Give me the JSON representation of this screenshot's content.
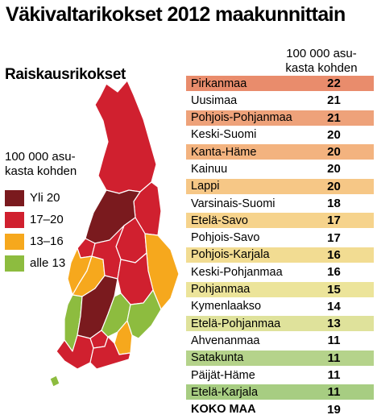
{
  "title": "Väkivaltarikokset 2012 maakunnittain",
  "subtitle": "Raiskausrikokset",
  "unit_text": [
    "100 000 asu-",
    "kasta kohden"
  ],
  "legend": [
    {
      "label": "Yli 20",
      "color": "#7a1a1e"
    },
    {
      "label": "17–20",
      "color": "#d0202f"
    },
    {
      "label": "13–16",
      "color": "#f6a81d"
    },
    {
      "label": "alle 13",
      "color": "#8dbc3f"
    }
  ],
  "table": {
    "rows": [
      {
        "name": "Pirkanmaa",
        "value": "22",
        "color": "#e98c6c"
      },
      {
        "name": "Uusimaa",
        "value": "21",
        "color": "#ffffff"
      },
      {
        "name": "Pohjois-Pohjanmaa",
        "value": "21",
        "color": "#eea27a"
      },
      {
        "name": "Keski-Suomi",
        "value": "20",
        "color": "#ffffff"
      },
      {
        "name": "Kanta-Häme",
        "value": "20",
        "color": "#f3b37f"
      },
      {
        "name": "Kainuu",
        "value": "20",
        "color": "#ffffff"
      },
      {
        "name": "Lappi",
        "value": "20",
        "color": "#f6c786"
      },
      {
        "name": "Varsinais-Suomi",
        "value": "18",
        "color": "#ffffff"
      },
      {
        "name": "Etelä-Savo",
        "value": "17",
        "color": "#f6d38c"
      },
      {
        "name": "Pohjois-Savo",
        "value": "17",
        "color": "#ffffff"
      },
      {
        "name": "Pohjois-Karjala",
        "value": "16",
        "color": "#f2dc92"
      },
      {
        "name": "Keski-Pohjanmaa",
        "value": "16",
        "color": "#ffffff"
      },
      {
        "name": "Pohjanmaa",
        "value": "15",
        "color": "#ece49a"
      },
      {
        "name": "Kymenlaakso",
        "value": "14",
        "color": "#ffffff"
      },
      {
        "name": "Etelä-Pohjanmaa",
        "value": "13",
        "color": "#dfe29b"
      },
      {
        "name": "Ahvenanmaa",
        "value": "11",
        "color": "#ffffff"
      },
      {
        "name": "Satakunta",
        "value": "11",
        "color": "#b5d38b"
      },
      {
        "name": "Päijät-Häme",
        "value": "11",
        "color": "#ffffff"
      },
      {
        "name": "Etelä-Karjala",
        "value": "11",
        "color": "#a7cd82"
      }
    ],
    "total": {
      "name": "KOKO MAA",
      "value": "19"
    }
  }
}
